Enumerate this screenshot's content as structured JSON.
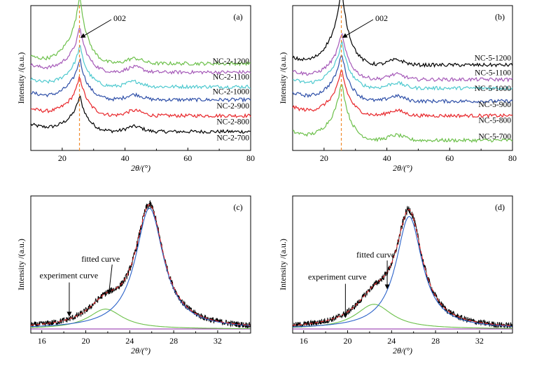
{
  "colors": {
    "black": "#000000",
    "red": "#e8262a",
    "blue": "#2e4fa8",
    "cyan": "#4ec9cf",
    "purple": "#a559b8",
    "green": "#6cc04a",
    "fit_red": "#e8262a",
    "fit_blue": "#2b62c9",
    "fit_green": "#6cc04a",
    "baseline": "#9a3fb0",
    "marker": "#f08a2c"
  },
  "chart_data": [
    {
      "id": "a",
      "type": "line",
      "panel_label": "(a)",
      "xlabel": "2θ/(°)",
      "ylabel": "Intensity /(a.u.)",
      "xlim": [
        10,
        80
      ],
      "ylim": [
        0,
        10
      ],
      "xticks": [
        20,
        40,
        60,
        80
      ],
      "marker_x": 25.5,
      "annotation": "002",
      "grid": false,
      "legend": "none",
      "series": [
        {
          "name": "NC-2-700",
          "color": "#000000",
          "label_y": 0.7,
          "offset": 1.3,
          "peak_height": 1.9,
          "background": 0.5
        },
        {
          "name": "NC-2-800",
          "color": "#e8262a",
          "label_y": 1.8,
          "offset": 2.4,
          "peak_height": 2.1,
          "background": 0.5
        },
        {
          "name": "NC-2-900",
          "color": "#2e4fa8",
          "label_y": 2.9,
          "offset": 3.5,
          "peak_height": 2.2,
          "background": 0.5
        },
        {
          "name": "NC-2-1000",
          "color": "#4ec9cf",
          "label_y": 3.9,
          "offset": 4.4,
          "peak_height": 2.2,
          "background": 0.5
        },
        {
          "name": "NC-2-1100",
          "color": "#a559b8",
          "label_y": 4.9,
          "offset": 5.4,
          "peak_height": 2.4,
          "background": 0.5
        },
        {
          "name": "NC-2-1200",
          "color": "#6cc04a",
          "label_y": 6.0,
          "offset": 6.0,
          "peak_height": 3.7,
          "background": 0.5
        }
      ]
    },
    {
      "id": "b",
      "type": "line",
      "panel_label": "(b)",
      "xlabel": "2θ/(°)",
      "ylabel": "Intensity /(a.u.)",
      "xlim": [
        10,
        80
      ],
      "ylim": [
        0,
        10
      ],
      "xticks": [
        20,
        40,
        60,
        80
      ],
      "marker_x": 25.5,
      "annotation": "002",
      "grid": false,
      "legend": "none",
      "series": [
        {
          "name": "NC-5-700",
          "color": "#6cc04a",
          "label_y": 0.8,
          "offset": 0.7,
          "peak_height": 3.2,
          "background": 0.6
        },
        {
          "name": "NC-5-800",
          "color": "#e8262a",
          "label_y": 1.9,
          "offset": 2.4,
          "peak_height": 2.5,
          "background": 0.6
        },
        {
          "name": "NC-5-900",
          "color": "#2e4fa8",
          "label_y": 3.0,
          "offset": 3.4,
          "peak_height": 2.6,
          "background": 0.6
        },
        {
          "name": "NC-5-1000",
          "color": "#4ec9cf",
          "label_y": 4.1,
          "offset": 4.3,
          "peak_height": 2.5,
          "background": 0.6
        },
        {
          "name": "NC-5-1100",
          "color": "#a559b8",
          "label_y": 5.2,
          "offset": 4.9,
          "peak_height": 2.5,
          "background": 0.6
        },
        {
          "name": "NC-5-1200",
          "color": "#000000",
          "label_y": 6.2,
          "offset": 5.9,
          "peak_height": 4.2,
          "background": 0.5
        }
      ]
    },
    {
      "id": "c",
      "type": "line",
      "panel_label": "(c)",
      "xlabel": "2θ/(°)",
      "ylabel": "Intensity /(a.u.)",
      "xlim": [
        15,
        35
      ],
      "ylim": [
        0,
        10
      ],
      "xticks": [
        16,
        20,
        24,
        28,
        32
      ],
      "grid": false,
      "legend": "none",
      "annotations": [
        {
          "text": "experiment curve",
          "x": 15.8,
          "y": 4.0,
          "arrow_x": 18.5,
          "arrow_y": 1.3
        },
        {
          "text": "fitted curve",
          "x": 19.6,
          "y": 5.2,
          "arrow_x": 22.1,
          "arrow_y": 2.9
        }
      ],
      "fit": {
        "baseline": 0.3,
        "peak1": {
          "center": 25.8,
          "height": 8.8,
          "width": 1.55
        },
        "peak2": {
          "center": 21.8,
          "height": 1.45,
          "width": 1.9
        }
      }
    },
    {
      "id": "d",
      "type": "line",
      "panel_label": "(d)",
      "xlabel": "2θ/(°)",
      "ylabel": "Intensity /(a.u.)",
      "xlim": [
        15,
        35
      ],
      "ylim": [
        0,
        10
      ],
      "xticks": [
        16,
        20,
        24,
        28,
        32
      ],
      "grid": false,
      "legend": "none",
      "annotations": [
        {
          "text": "experiment curve",
          "x": 16.4,
          "y": 3.9,
          "arrow_x": 19.8,
          "arrow_y": 1.2
        },
        {
          "text": "fitted curve",
          "x": 20.8,
          "y": 5.5,
          "arrow_x": 23.6,
          "arrow_y": 3.3
        }
      ],
      "fit": {
        "baseline": 0.3,
        "peak1": {
          "center": 25.6,
          "height": 8.2,
          "width": 1.45
        },
        "peak2": {
          "center": 22.4,
          "height": 1.8,
          "width": 2.0
        }
      }
    }
  ]
}
